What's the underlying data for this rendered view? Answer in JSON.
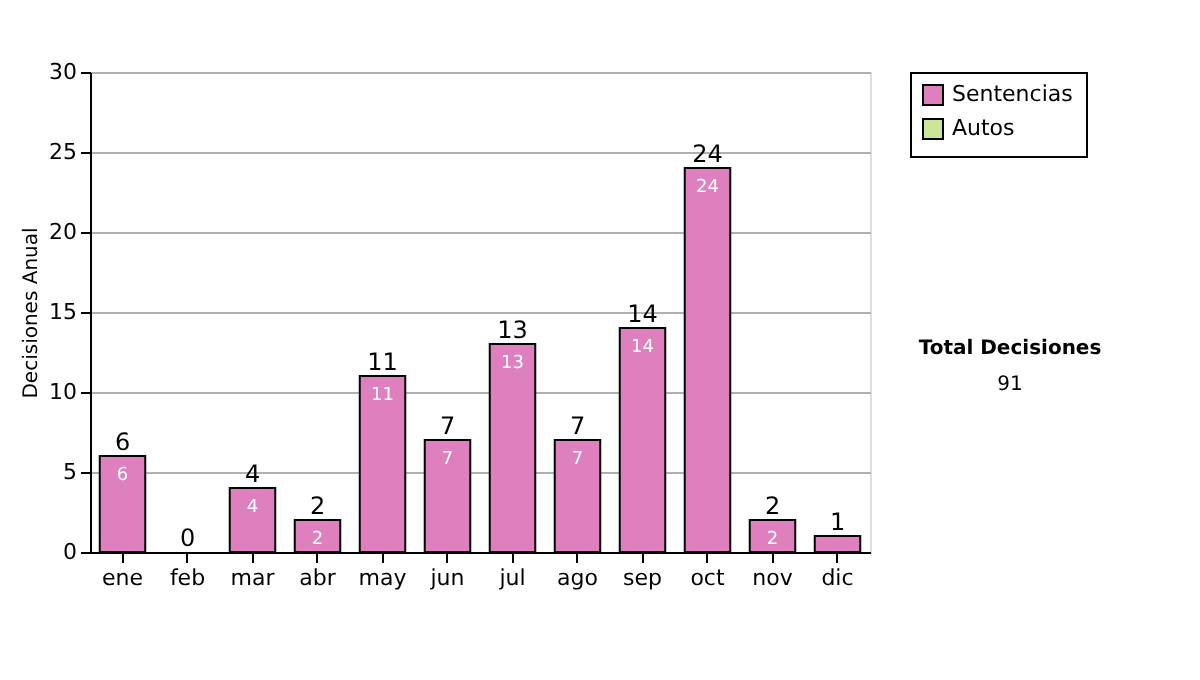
{
  "chart_data": {
    "type": "bar",
    "ylabel": "Decisiones Anual",
    "categories": [
      "ene",
      "feb",
      "mar",
      "abr",
      "may",
      "jun",
      "jul",
      "ago",
      "sep",
      "oct",
      "nov",
      "dic"
    ],
    "series": [
      {
        "name": "Sentencias",
        "color": "#df80be",
        "values": [
          6,
          0,
          4,
          2,
          11,
          7,
          13,
          7,
          14,
          24,
          2,
          1
        ],
        "value_labels": [
          "6",
          null,
          "4",
          "2",
          "11",
          "7",
          "13",
          "7",
          "14",
          "24",
          "2",
          null
        ]
      },
      {
        "name": "Autos",
        "color": "#cce699",
        "values": [
          0,
          0,
          0,
          0,
          0,
          0,
          0,
          0,
          0,
          0,
          0,
          0
        ]
      }
    ],
    "stacked": true,
    "totals": [
      "6",
      "0",
      "4",
      "2",
      "11",
      "7",
      "13",
      "7",
      "14",
      "24",
      "2",
      "1"
    ],
    "ylim": [
      0,
      30
    ],
    "yticks": [
      0,
      5,
      10,
      15,
      20,
      25,
      30
    ],
    "grid": "y",
    "legend": "right",
    "annotations": [
      "Total Decisiones",
      "91"
    ]
  }
}
